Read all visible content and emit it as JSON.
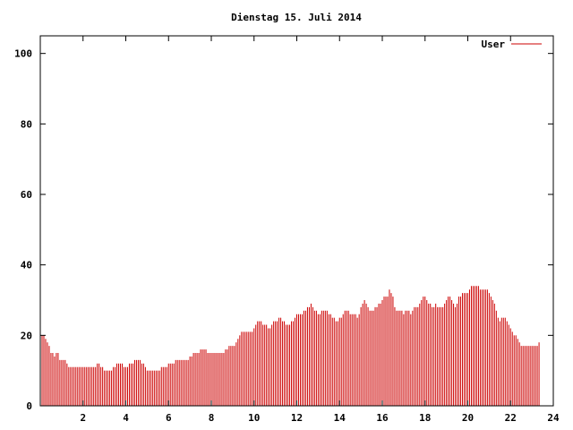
{
  "chart_data": {
    "type": "bar",
    "title": "Dienstag 15. Juli 2014",
    "xlabel": "",
    "ylabel": "",
    "xlim": [
      0,
      24
    ],
    "ylim": [
      0,
      105
    ],
    "x_ticks": [
      2,
      4,
      6,
      8,
      10,
      12,
      14,
      16,
      18,
      20,
      22,
      24
    ],
    "y_ticks": [
      0,
      20,
      40,
      60,
      80,
      100
    ],
    "legend": {
      "position": "top-right"
    },
    "grid": false,
    "series": [
      {
        "name": "User",
        "color": "#cc0000",
        "points_per_hour": 12,
        "values": [
          20,
          20,
          20,
          19,
          18,
          17,
          15,
          15,
          14,
          15,
          15,
          13,
          13,
          13,
          13,
          12,
          11,
          11,
          11,
          11,
          11,
          11,
          11,
          11,
          11,
          11,
          11,
          11,
          11,
          11,
          11,
          11,
          12,
          12,
          11,
          11,
          10,
          10,
          10,
          10,
          10,
          11,
          11,
          12,
          12,
          12,
          12,
          11,
          11,
          11,
          12,
          12,
          12,
          13,
          13,
          13,
          13,
          12,
          12,
          11,
          10,
          10,
          10,
          10,
          10,
          10,
          10,
          10,
          11,
          11,
          11,
          11,
          12,
          12,
          12,
          12,
          13,
          13,
          13,
          13,
          13,
          13,
          13,
          13,
          14,
          14,
          15,
          15,
          15,
          15,
          16,
          16,
          16,
          16,
          15,
          15,
          15,
          15,
          15,
          15,
          15,
          15,
          15,
          15,
          16,
          16,
          17,
          17,
          17,
          17,
          18,
          19,
          20,
          21,
          21,
          21,
          21,
          21,
          21,
          21,
          22,
          23,
          24,
          24,
          24,
          23,
          23,
          23,
          22,
          22,
          23,
          24,
          24,
          24,
          25,
          25,
          24,
          24,
          23,
          23,
          23,
          24,
          24,
          25,
          26,
          26,
          26,
          26,
          27,
          27,
          28,
          28,
          29,
          28,
          27,
          27,
          26,
          26,
          27,
          27,
          27,
          27,
          26,
          26,
          25,
          25,
          24,
          24,
          25,
          25,
          26,
          27,
          27,
          27,
          26,
          26,
          26,
          26,
          25,
          26,
          28,
          29,
          30,
          29,
          28,
          27,
          27,
          27,
          28,
          28,
          29,
          29,
          30,
          31,
          31,
          31,
          33,
          32,
          31,
          28,
          27,
          27,
          27,
          27,
          26,
          27,
          27,
          27,
          26,
          27,
          28,
          28,
          28,
          29,
          30,
          31,
          31,
          30,
          29,
          29,
          28,
          28,
          29,
          28,
          28,
          28,
          28,
          29,
          30,
          31,
          31,
          30,
          29,
          28,
          29,
          31,
          31,
          32,
          32,
          32,
          32,
          33,
          34,
          34,
          34,
          34,
          34,
          33,
          33,
          33,
          33,
          33,
          32,
          31,
          30,
          29,
          27,
          25,
          24,
          25,
          25,
          25,
          24,
          23,
          22,
          21,
          20,
          20,
          19,
          18,
          17,
          17,
          17,
          17,
          17,
          17,
          17,
          17,
          17,
          17,
          18
        ]
      }
    ]
  }
}
